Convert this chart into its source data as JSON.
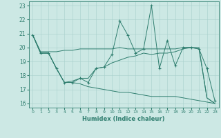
{
  "title": "",
  "xlabel": "Humidex (Indice chaleur)",
  "bg_color": "#cce8e4",
  "line_color": "#2e7d6e",
  "grid_color": "#a8d0cc",
  "xlim": [
    -0.5,
    23.5
  ],
  "ylim": [
    15.7,
    23.3
  ],
  "xticks": [
    0,
    1,
    2,
    3,
    4,
    5,
    6,
    7,
    8,
    9,
    10,
    11,
    12,
    13,
    14,
    15,
    16,
    17,
    18,
    19,
    20,
    21,
    22,
    23
  ],
  "yticks": [
    16,
    17,
    18,
    19,
    20,
    21,
    22,
    23
  ],
  "series": [
    {
      "x": [
        0,
        1,
        2,
        3,
        4,
        5,
        6,
        7,
        8,
        9,
        10,
        11,
        12,
        13,
        14,
        15,
        16,
        17,
        18,
        19,
        20,
        21,
        22,
        23
      ],
      "y": [
        20.9,
        19.6,
        19.6,
        18.5,
        17.5,
        17.5,
        17.8,
        17.5,
        18.5,
        18.6,
        19.5,
        21.9,
        20.9,
        19.6,
        19.9,
        23.0,
        18.5,
        20.5,
        18.7,
        20.0,
        20.0,
        19.9,
        18.5,
        16.2
      ],
      "has_markers": true
    },
    {
      "x": [
        0,
        1,
        2,
        3,
        4,
        5,
        6,
        7,
        8,
        9,
        10,
        11,
        12,
        13,
        14,
        15,
        16,
        17,
        18,
        19,
        20,
        21,
        22,
        23
      ],
      "y": [
        20.9,
        19.7,
        19.7,
        19.7,
        19.8,
        19.8,
        19.9,
        19.9,
        19.9,
        19.9,
        19.9,
        20.0,
        19.9,
        19.9,
        19.9,
        19.9,
        19.9,
        19.9,
        19.9,
        20.0,
        20.0,
        20.0,
        16.4,
        16.0
      ],
      "has_markers": false
    },
    {
      "x": [
        0,
        1,
        2,
        3,
        4,
        5,
        6,
        7,
        8,
        9,
        10,
        11,
        12,
        13,
        14,
        15,
        16,
        17,
        18,
        19,
        20,
        21,
        22,
        23
      ],
      "y": [
        20.9,
        19.6,
        19.6,
        18.5,
        17.5,
        17.6,
        17.8,
        17.8,
        18.5,
        18.6,
        18.9,
        19.1,
        19.3,
        19.4,
        19.6,
        19.5,
        19.6,
        19.6,
        19.7,
        19.9,
        20.0,
        19.9,
        16.4,
        16.0
      ],
      "has_markers": false
    },
    {
      "x": [
        0,
        1,
        2,
        3,
        4,
        5,
        6,
        7,
        8,
        9,
        10,
        11,
        12,
        13,
        14,
        15,
        16,
        17,
        18,
        19,
        20,
        21,
        22,
        23
      ],
      "y": [
        20.9,
        19.6,
        19.6,
        18.5,
        17.5,
        17.5,
        17.4,
        17.2,
        17.1,
        17.0,
        16.9,
        16.8,
        16.8,
        16.7,
        16.6,
        16.5,
        16.5,
        16.5,
        16.5,
        16.4,
        16.3,
        16.2,
        16.1,
        16.0
      ],
      "has_markers": false
    }
  ]
}
